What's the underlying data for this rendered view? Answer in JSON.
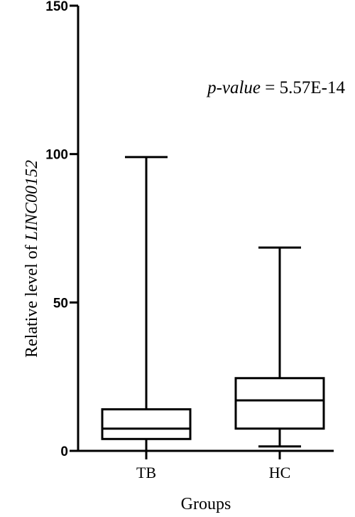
{
  "chart_data": {
    "type": "box",
    "categories": [
      "TB",
      "HC"
    ],
    "boxes": [
      {
        "category": "TB",
        "min": 0,
        "q1": 4,
        "median": 7.5,
        "q3": 14,
        "max": 99
      },
      {
        "category": "HC",
        "min": 1.5,
        "q1": 7.5,
        "median": 17,
        "q3": 24.5,
        "max": 68.5
      }
    ],
    "yticks": [
      0,
      50,
      100,
      150
    ],
    "ytick_labels": [
      "0",
      "50",
      "100",
      "150"
    ],
    "ylim": [
      0,
      150
    ],
    "xlabel": "Groups",
    "ylabel_prefix": "Relative level of ",
    "ylabel_gene": "LINC00152",
    "annotation": {
      "label": "p-value",
      "equals": " = ",
      "value": "5.57E-14"
    },
    "grid": false
  }
}
